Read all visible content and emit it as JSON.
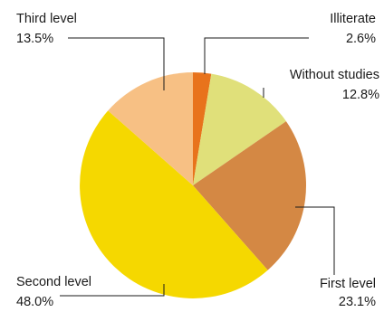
{
  "chart_data": {
    "type": "pie",
    "title": "",
    "slices": [
      {
        "label": "Illiterate",
        "value": 2.6,
        "value_label": "2.6%",
        "color": "#e8731c"
      },
      {
        "label": "Without studies",
        "value": 12.8,
        "value_label": "12.8%",
        "color": "#e0e07a"
      },
      {
        "label": "First level",
        "value": 23.1,
        "value_label": "23.1%",
        "color": "#d48844"
      },
      {
        "label": "Second level",
        "value": 48.0,
        "value_label": "48.0%",
        "color": "#f5d800"
      },
      {
        "label": "Third level",
        "value": 13.5,
        "value_label": "13.5%",
        "color": "#f7c084"
      }
    ],
    "start_angle": "12 o'clock",
    "direction": "clockwise",
    "legend": "none",
    "labels": "outside with leader lines"
  }
}
